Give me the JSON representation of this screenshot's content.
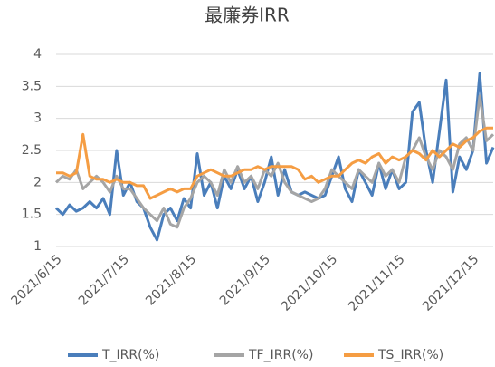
{
  "chart_data": {
    "type": "line",
    "title": "最廉券IRR",
    "categories": [
      "2021/6/15",
      null,
      null,
      null,
      null,
      null,
      null,
      null,
      null,
      null,
      "2021/7/15",
      null,
      null,
      null,
      null,
      null,
      null,
      null,
      null,
      null,
      "2021/8/15",
      null,
      null,
      null,
      null,
      null,
      null,
      null,
      null,
      null,
      null,
      "2021/9/15",
      null,
      null,
      null,
      null,
      null,
      null,
      null,
      null,
      null,
      "2021/10/15",
      null,
      null,
      null,
      null,
      null,
      null,
      null,
      null,
      null,
      "2021/11/15",
      null,
      null,
      null,
      null,
      null,
      null,
      null,
      null,
      null,
      null,
      "2021/12/15",
      null,
      null,
      null
    ],
    "series": [
      {
        "name": "T_IRR(%)",
        "color": "#4a7ebb",
        "values": [
          1.6,
          1.5,
          1.65,
          1.55,
          1.6,
          1.7,
          1.6,
          1.75,
          1.5,
          2.5,
          1.8,
          2.0,
          1.7,
          1.6,
          1.3,
          1.1,
          1.5,
          1.6,
          1.4,
          1.75,
          1.6,
          2.45,
          1.8,
          2.0,
          1.6,
          2.1,
          1.9,
          2.2,
          1.9,
          2.1,
          1.7,
          2.0,
          2.4,
          1.8,
          2.2,
          1.85,
          1.8,
          1.85,
          1.8,
          1.75,
          1.8,
          2.1,
          2.4,
          1.9,
          1.7,
          2.2,
          2.0,
          1.8,
          2.3,
          1.9,
          2.2,
          1.9,
          2.0,
          3.1,
          3.25,
          2.5,
          2.0,
          2.8,
          3.6,
          1.85,
          2.4,
          2.2,
          2.5,
          3.7,
          2.3,
          2.55
        ]
      },
      {
        "name": "TF_IRR(%)",
        "color": "#a5a5a5",
        "values": [
          2.0,
          2.1,
          2.05,
          2.2,
          1.9,
          2.0,
          2.1,
          2.0,
          1.85,
          2.1,
          1.9,
          1.9,
          1.75,
          1.6,
          1.5,
          1.4,
          1.6,
          1.35,
          1.3,
          1.6,
          1.75,
          2.0,
          2.1,
          2.0,
          1.8,
          2.2,
          2.0,
          2.25,
          2.0,
          2.1,
          1.9,
          2.2,
          2.1,
          2.3,
          2.0,
          1.85,
          1.8,
          1.75,
          1.7,
          1.75,
          1.9,
          2.2,
          2.1,
          2.0,
          1.9,
          2.2,
          2.1,
          2.0,
          2.3,
          2.1,
          2.2,
          2.0,
          2.4,
          2.5,
          2.7,
          2.4,
          2.2,
          2.5,
          2.4,
          2.2,
          2.6,
          2.7,
          2.5,
          3.35,
          2.65,
          2.75
        ]
      },
      {
        "name": "TS_IRR(%)",
        "color": "#f59d43",
        "values": [
          2.15,
          2.15,
          2.1,
          2.15,
          2.75,
          2.1,
          2.05,
          2.05,
          2.0,
          2.05,
          2.0,
          2.0,
          1.95,
          1.95,
          1.75,
          1.8,
          1.85,
          1.9,
          1.85,
          1.9,
          1.9,
          2.1,
          2.15,
          2.2,
          2.15,
          2.1,
          2.1,
          2.15,
          2.2,
          2.2,
          2.25,
          2.2,
          2.25,
          2.25,
          2.25,
          2.25,
          2.2,
          2.05,
          2.1,
          2.0,
          2.05,
          2.1,
          2.1,
          2.2,
          2.3,
          2.35,
          2.3,
          2.4,
          2.45,
          2.3,
          2.4,
          2.35,
          2.4,
          2.5,
          2.45,
          2.35,
          2.5,
          2.4,
          2.5,
          2.6,
          2.55,
          2.65,
          2.7,
          2.8,
          2.85,
          2.85
        ]
      }
    ],
    "ylim": [
      1,
      4
    ],
    "yticks": [
      1,
      1.5,
      2,
      2.5,
      3,
      3.5,
      4
    ],
    "grid": true,
    "legend": "bottom"
  }
}
